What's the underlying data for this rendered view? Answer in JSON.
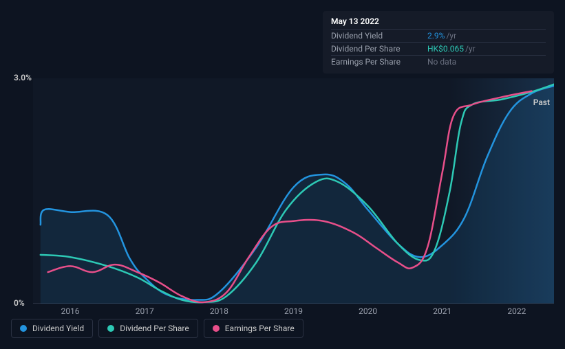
{
  "tooltip": {
    "date": "May 13 2022",
    "rows": [
      {
        "label": "Dividend Yield",
        "value": "2.9%",
        "unit": "/yr",
        "color": "#2394df"
      },
      {
        "label": "Dividend Per Share",
        "value": "HK$0.065",
        "unit": "/yr",
        "color": "#2dc9b5"
      },
      {
        "label": "Earnings Per Share",
        "value": "No data",
        "nodata": true
      }
    ]
  },
  "chart": {
    "type": "line",
    "background_color": "#0d1421",
    "plot_bg_gradient": [
      "#101826",
      "#18304a"
    ],
    "grid_color": "#2a3142",
    "text_color": "#cccccc",
    "muted_color": "#9aa0ad",
    "ylim": [
      0,
      3.0
    ],
    "y_ticks": [
      {
        "v": 0,
        "label": "0%"
      },
      {
        "v": 3.0,
        "label": "3.0%"
      }
    ],
    "x_range": [
      2015.5,
      2022.5
    ],
    "x_ticks": [
      2016,
      2017,
      2018,
      2019,
      2020,
      2021,
      2022
    ],
    "past_label": "Past",
    "series": [
      {
        "name": "Dividend Yield",
        "color": "#2394df",
        "fill": "rgba(35,148,223,0.12)",
        "width": 2.5,
        "points": [
          [
            2015.6,
            1.05
          ],
          [
            2015.65,
            1.25
          ],
          [
            2016.0,
            1.22
          ],
          [
            2016.5,
            1.18
          ],
          [
            2016.8,
            0.6
          ],
          [
            2017.0,
            0.35
          ],
          [
            2017.3,
            0.12
          ],
          [
            2017.7,
            0.05
          ],
          [
            2018.0,
            0.15
          ],
          [
            2018.5,
            0.75
          ],
          [
            2019.0,
            1.55
          ],
          [
            2019.4,
            1.72
          ],
          [
            2019.7,
            1.6
          ],
          [
            2020.0,
            1.25
          ],
          [
            2020.4,
            0.8
          ],
          [
            2020.7,
            0.62
          ],
          [
            2021.0,
            0.78
          ],
          [
            2021.3,
            1.15
          ],
          [
            2021.6,
            1.95
          ],
          [
            2021.9,
            2.55
          ],
          [
            2022.2,
            2.8
          ],
          [
            2022.5,
            2.9
          ]
        ]
      },
      {
        "name": "Dividend Per Share",
        "color": "#2dc9b5",
        "width": 2.5,
        "points": [
          [
            2015.6,
            0.65
          ],
          [
            2016.0,
            0.62
          ],
          [
            2016.5,
            0.5
          ],
          [
            2016.9,
            0.35
          ],
          [
            2017.2,
            0.18
          ],
          [
            2017.5,
            0.05
          ],
          [
            2017.8,
            0.02
          ],
          [
            2018.1,
            0.1
          ],
          [
            2018.5,
            0.55
          ],
          [
            2018.9,
            1.25
          ],
          [
            2019.3,
            1.62
          ],
          [
            2019.6,
            1.62
          ],
          [
            2020.0,
            1.3
          ],
          [
            2020.4,
            0.8
          ],
          [
            2020.7,
            0.58
          ],
          [
            2020.9,
            0.72
          ],
          [
            2021.1,
            1.5
          ],
          [
            2021.25,
            2.4
          ],
          [
            2021.4,
            2.65
          ],
          [
            2021.8,
            2.72
          ],
          [
            2022.2,
            2.82
          ],
          [
            2022.5,
            2.92
          ]
        ]
      },
      {
        "name": "Earnings Per Share",
        "color": "#e84f8a",
        "width": 2.5,
        "points": [
          [
            2015.7,
            0.42
          ],
          [
            2016.0,
            0.5
          ],
          [
            2016.3,
            0.42
          ],
          [
            2016.6,
            0.52
          ],
          [
            2016.9,
            0.42
          ],
          [
            2017.2,
            0.28
          ],
          [
            2017.5,
            0.1
          ],
          [
            2017.8,
            0.02
          ],
          [
            2018.1,
            0.15
          ],
          [
            2018.4,
            0.62
          ],
          [
            2018.7,
            1.02
          ],
          [
            2019.0,
            1.1
          ],
          [
            2019.4,
            1.1
          ],
          [
            2019.8,
            0.95
          ],
          [
            2020.1,
            0.75
          ],
          [
            2020.4,
            0.55
          ],
          [
            2020.6,
            0.48
          ],
          [
            2020.8,
            0.75
          ],
          [
            2021.0,
            1.75
          ],
          [
            2021.15,
            2.5
          ],
          [
            2021.4,
            2.65
          ],
          [
            2021.8,
            2.75
          ],
          [
            2022.2,
            2.83
          ]
        ]
      }
    ]
  },
  "legend": {
    "items": [
      {
        "label": "Dividend Yield",
        "color": "#2394df"
      },
      {
        "label": "Dividend Per Share",
        "color": "#2dc9b5"
      },
      {
        "label": "Earnings Per Share",
        "color": "#e84f8a"
      }
    ]
  }
}
